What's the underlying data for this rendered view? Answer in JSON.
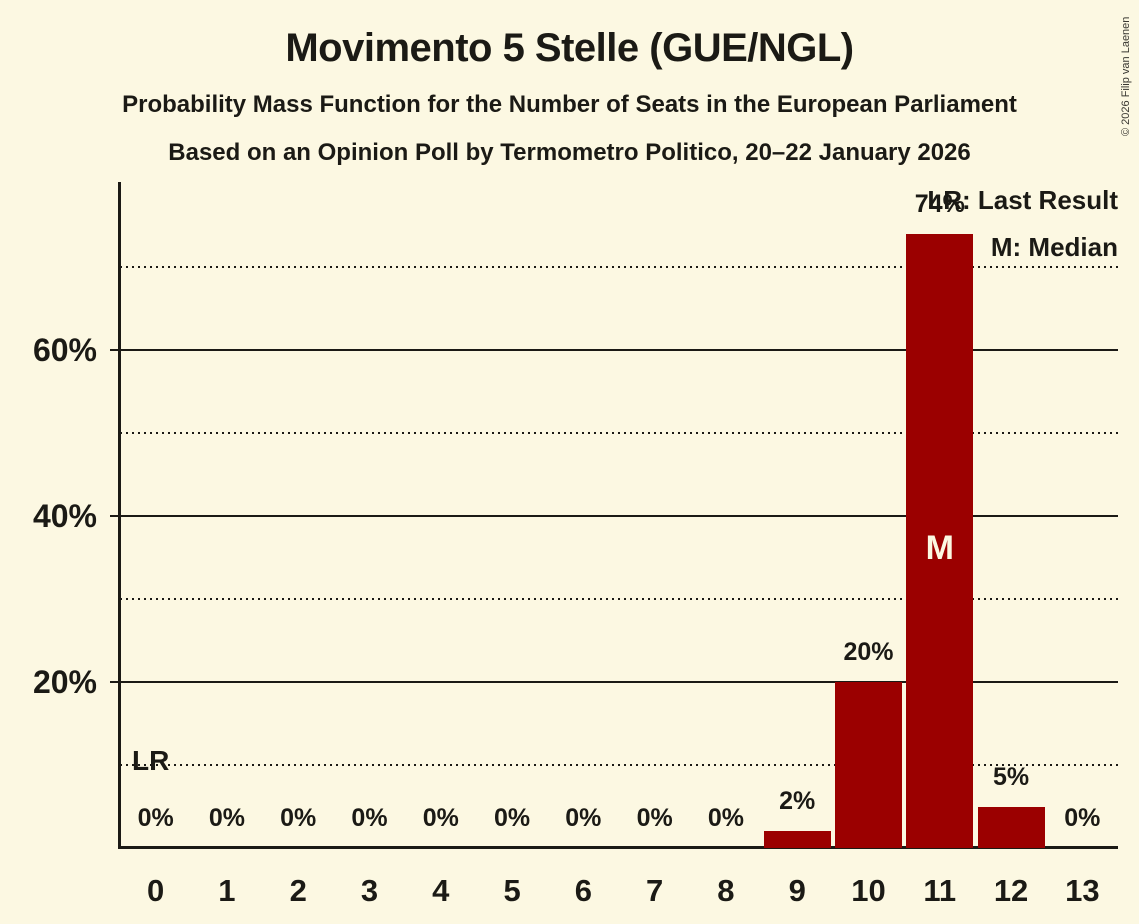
{
  "header": {
    "title": "Movimento 5 Stelle (GUE/NGL)",
    "subtitle_line1": "Probability Mass Function for the Number of Seats in the European Parliament",
    "subtitle_line2": "Based on an Opinion Poll by Termometro Politico, 20–22 January 2026"
  },
  "copyright": "© 2026 Filip van Laenen",
  "legend": {
    "lr_label": "LR: Last Result",
    "m_label": "M: Median"
  },
  "colors": {
    "background": "#FCF8E2",
    "bar": "#9B0000",
    "text": "#1B1A15",
    "median_marker_text": "#FCF8E2"
  },
  "chart_data": {
    "type": "bar",
    "title": "Movimento 5 Stelle (GUE/NGL)",
    "categories": [
      "0",
      "1",
      "2",
      "3",
      "4",
      "5",
      "6",
      "7",
      "8",
      "9",
      "10",
      "11",
      "12",
      "13"
    ],
    "values": [
      0,
      0,
      0,
      0,
      0,
      0,
      0,
      0,
      0,
      2,
      20,
      74,
      5,
      0
    ],
    "bar_labels": [
      "0%",
      "0%",
      "0%",
      "0%",
      "0%",
      "0%",
      "0%",
      "0%",
      "0%",
      "2%",
      "20%",
      "74%",
      "5%",
      "0%"
    ],
    "ylim": [
      0,
      80
    ],
    "y_ticks": [
      {
        "pct": 20,
        "label": "20%"
      },
      {
        "pct": 40,
        "label": "40%"
      },
      {
        "pct": 60,
        "label": "60%"
      }
    ],
    "solid_gridlines_pct": [
      20,
      40,
      60
    ],
    "dotted_gridlines_pct": [
      10,
      30,
      50,
      70
    ],
    "grid": "horizontal",
    "legend_position": "top-right",
    "median": {
      "category": "11",
      "marker": "M"
    },
    "last_result": {
      "category": "0",
      "marker": "LR"
    }
  }
}
